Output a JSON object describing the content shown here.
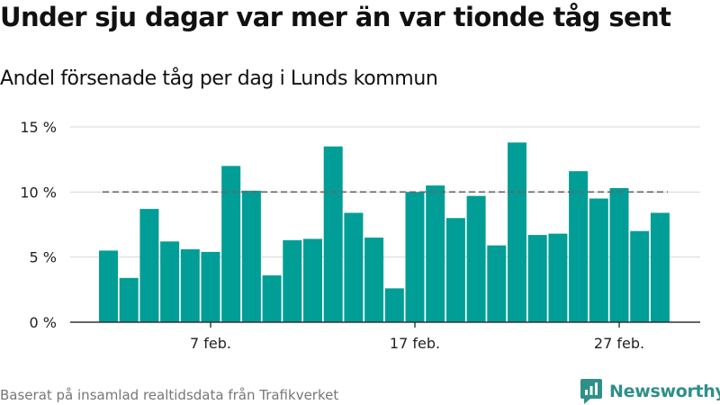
{
  "header": {
    "title": "Under sju dagar var mer än var tionde tåg sent",
    "subtitle": "Andel försenade tåg per dag i Lunds kommun"
  },
  "footer": {
    "source": "Baserat på insamlad realtidsdata från Trafikverket",
    "brand": "Newsworthy",
    "brand_icon": "newsworthy-logo-icon"
  },
  "colors": {
    "bar": "#009E96",
    "reference_line": "#666666",
    "grid": "#d6d6d6",
    "axis": "#333333",
    "brand": "#2f8f89"
  },
  "chart_data": {
    "type": "bar",
    "ylim": [
      0,
      15
    ],
    "yticks": [
      0,
      5,
      10,
      15
    ],
    "ytick_labels": [
      "0 %",
      "5 %",
      "10 %",
      "15 %"
    ],
    "reference_line": 10,
    "grid": true,
    "x": [
      "2 feb",
      "3 feb",
      "4 feb",
      "5 feb",
      "6 feb",
      "7 feb",
      "8 feb",
      "9 feb",
      "10 feb",
      "11 feb",
      "12 feb",
      "13 feb",
      "14 feb",
      "15 feb",
      "16 feb",
      "17 feb",
      "18 feb",
      "19 feb",
      "20 feb",
      "21 feb",
      "22 feb",
      "23 feb",
      "24 feb",
      "25 feb",
      "26 feb",
      "27 feb",
      "28 feb",
      "29 feb"
    ],
    "values": [
      5.5,
      3.4,
      8.7,
      6.2,
      5.6,
      5.4,
      12.0,
      10.1,
      3.6,
      6.3,
      6.4,
      13.5,
      8.4,
      6.5,
      2.6,
      10.0,
      10.5,
      8.0,
      9.7,
      5.9,
      13.8,
      6.7,
      6.8,
      11.6,
      9.5,
      10.3,
      7.0,
      8.4
    ],
    "xticks": [
      {
        "index": 5,
        "label": "7 feb."
      },
      {
        "index": 15,
        "label": "17 feb."
      },
      {
        "index": 25,
        "label": "27 feb."
      }
    ]
  }
}
